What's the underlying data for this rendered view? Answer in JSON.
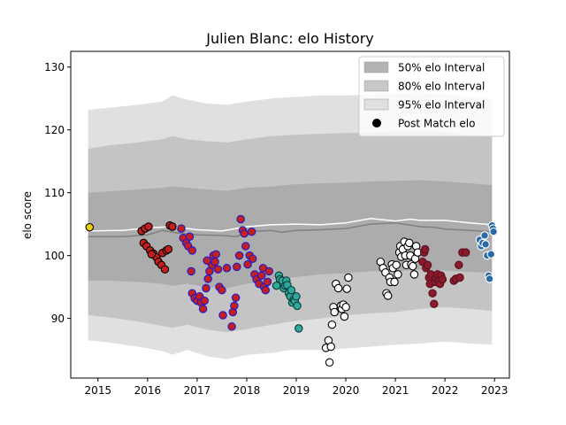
{
  "chart_data": {
    "type": "scatter",
    "title": "Julien Blanc: elo History",
    "ylabel": "elo score",
    "xlabel": "",
    "xlim": [
      2014.45,
      2023.3
    ],
    "ylim": [
      80.5,
      132.5
    ],
    "x_ticks": [
      2015,
      2016,
      2017,
      2018,
      2019,
      2020,
      2021,
      2022,
      2023
    ],
    "y_ticks": [
      90,
      100,
      110,
      120,
      130
    ],
    "grid": false,
    "legend_position": "top-right",
    "legend": [
      {
        "label": "50% elo Interval",
        "kind": "band",
        "color": "#b3b3b3"
      },
      {
        "label": "80% elo Interval",
        "kind": "band",
        "color": "#c8c8c8"
      },
      {
        "label": "95% elo Interval",
        "kind": "band",
        "color": "#e0e0e0"
      },
      {
        "label": "Post Match elo",
        "kind": "marker",
        "color": "#000000"
      }
    ],
    "bands": {
      "x": [
        2014.8,
        2015.2,
        2015.8,
        2016.3,
        2016.5,
        2016.8,
        2017.2,
        2017.6,
        2018.0,
        2018.5,
        2018.9,
        2019.5,
        2020.0,
        2020.5,
        2021.0,
        2021.5,
        2022.0,
        2022.5,
        2022.95
      ],
      "p95_low": [
        86.5,
        86.2,
        85.5,
        84.8,
        84.2,
        85.0,
        84.0,
        83.5,
        84.2,
        84.5,
        85.0,
        85.0,
        85.2,
        85.5,
        85.8,
        86.0,
        86.3,
        86.0,
        85.8
      ],
      "p95_high": [
        123.2,
        123.5,
        124.0,
        124.5,
        125.5,
        124.8,
        124.2,
        124.0,
        124.5,
        125.0,
        125.2,
        125.5,
        125.5,
        125.6,
        125.8,
        125.9,
        125.7,
        125.3,
        125.0
      ],
      "p80_low": [
        90.5,
        90.2,
        89.5,
        88.8,
        88.5,
        89.0,
        88.2,
        87.8,
        88.3,
        89.0,
        89.5,
        90.0,
        90.5,
        90.8,
        91.0,
        91.5,
        91.8,
        91.5,
        91.2
      ],
      "p80_high": [
        117.0,
        117.5,
        118.0,
        118.5,
        119.0,
        118.5,
        118.2,
        118.0,
        118.5,
        119.0,
        119.2,
        119.4,
        119.5,
        119.6,
        119.7,
        119.8,
        119.6,
        119.2,
        119.0
      ],
      "p50_low": [
        96.0,
        96.0,
        95.8,
        95.5,
        95.2,
        95.5,
        95.0,
        94.8,
        95.5,
        96.0,
        96.5,
        97.0,
        97.2,
        97.5,
        97.5,
        97.8,
        97.6,
        97.4,
        97.2
      ],
      "p50_high": [
        110.0,
        110.2,
        110.5,
        110.8,
        111.0,
        110.8,
        110.5,
        110.3,
        110.8,
        111.0,
        111.3,
        111.5,
        111.6,
        111.8,
        111.9,
        112.0,
        111.8,
        111.5,
        111.2
      ]
    },
    "median_line": {
      "color": "#808080",
      "x": [
        2014.8,
        2015.5,
        2016.0,
        2016.3,
        2016.6,
        2017.0,
        2017.5,
        2017.8,
        2018.0,
        2018.5,
        2018.7,
        2019.0,
        2019.5,
        2020.0,
        2020.5,
        2021.0,
        2021.5,
        2021.8,
        2022.0,
        2022.5,
        2022.95
      ],
      "y": [
        103.0,
        103.0,
        103.3,
        104.0,
        103.6,
        103.3,
        103.2,
        103.0,
        103.8,
        104.0,
        103.7,
        104.0,
        104.1,
        104.3,
        105.0,
        105.2,
        104.6,
        104.5,
        104.2,
        104.0,
        103.8
      ]
    },
    "mean_line": {
      "color": "#ffffff",
      "x": [
        2014.8,
        2015.5,
        2016.0,
        2016.5,
        2017.0,
        2017.5,
        2018.0,
        2018.5,
        2019.0,
        2019.5,
        2020.0,
        2020.5,
        2021.0,
        2021.3,
        2021.5,
        2022.0,
        2022.5,
        2022.95
      ],
      "y": [
        103.9,
        104.0,
        104.4,
        104.6,
        104.1,
        103.9,
        104.6,
        104.9,
        105.0,
        104.9,
        105.2,
        105.9,
        105.5,
        105.8,
        105.6,
        105.6,
        105.2,
        104.9
      ]
    },
    "series": [
      {
        "fill": "#e8d000",
        "edge": "#000000",
        "points": [
          [
            2014.83,
            104.5
          ]
        ]
      },
      {
        "fill": "#c41e1e",
        "edge": "#000000",
        "points": [
          [
            2015.88,
            103.9
          ],
          [
            2015.95,
            104.3
          ],
          [
            2016.02,
            104.6
          ],
          [
            2015.92,
            102.0
          ],
          [
            2015.98,
            101.5
          ],
          [
            2016.05,
            100.8
          ],
          [
            2016.12,
            100.3
          ],
          [
            2016.18,
            99.7
          ],
          [
            2016.22,
            99.0
          ],
          [
            2016.28,
            98.5
          ],
          [
            2016.35,
            97.8
          ],
          [
            2016.3,
            100.4
          ],
          [
            2016.38,
            100.8
          ],
          [
            2016.42,
            101.0
          ],
          [
            2016.45,
            104.8
          ],
          [
            2016.5,
            104.6
          ],
          [
            2016.08,
            100.2
          ]
        ]
      },
      {
        "fill": "#c41e1e",
        "edge": "#1a1ad0",
        "points": [
          [
            2016.68,
            104.3
          ],
          [
            2016.72,
            102.8
          ],
          [
            2016.78,
            102.0
          ],
          [
            2016.82,
            101.5
          ],
          [
            2016.85,
            103.0
          ],
          [
            2016.9,
            100.8
          ],
          [
            2016.88,
            97.5
          ],
          [
            2016.9,
            94.0
          ],
          [
            2016.95,
            93.2
          ],
          [
            2017.0,
            92.8
          ],
          [
            2017.05,
            93.5
          ],
          [
            2017.08,
            92.5
          ],
          [
            2017.12,
            91.5
          ],
          [
            2017.15,
            92.8
          ],
          [
            2017.18,
            94.8
          ],
          [
            2017.22,
            96.3
          ],
          [
            2017.25,
            97.5
          ],
          [
            2017.3,
            98.5
          ],
          [
            2017.33,
            100.0
          ],
          [
            2017.36,
            99.0
          ],
          [
            2017.38,
            100.2
          ],
          [
            2017.42,
            97.8
          ],
          [
            2017.45,
            95.0
          ],
          [
            2017.5,
            94.5
          ],
          [
            2017.52,
            90.5
          ],
          [
            2017.7,
            88.7
          ],
          [
            2017.72,
            91.0
          ],
          [
            2017.75,
            92.0
          ],
          [
            2017.78,
            93.3
          ],
          [
            2017.8,
            98.2
          ],
          [
            2017.85,
            100.0
          ],
          [
            2017.88,
            105.8
          ],
          [
            2017.92,
            104.0
          ],
          [
            2017.95,
            103.5
          ],
          [
            2017.98,
            101.5
          ],
          [
            2018.02,
            98.6
          ],
          [
            2018.06,
            100.0
          ],
          [
            2018.1,
            103.8
          ],
          [
            2018.12,
            99.5
          ],
          [
            2018.16,
            97.0
          ],
          [
            2018.2,
            96.2
          ],
          [
            2018.25,
            95.5
          ],
          [
            2018.3,
            96.8
          ],
          [
            2018.33,
            98.0
          ],
          [
            2018.35,
            95.0
          ],
          [
            2018.38,
            94.5
          ],
          [
            2018.42,
            95.8
          ],
          [
            2018.45,
            97.5
          ],
          [
            2017.6,
            98.0
          ],
          [
            2017.2,
            99.2
          ]
        ]
      },
      {
        "fill": "#2ea89a",
        "edge": "#0b3a3a",
        "points": [
          [
            2018.65,
            96.8
          ],
          [
            2018.67,
            96.2
          ],
          [
            2018.7,
            95.5
          ],
          [
            2018.72,
            96.0
          ],
          [
            2018.75,
            94.8
          ],
          [
            2018.78,
            95.2
          ],
          [
            2018.8,
            96.0
          ],
          [
            2018.82,
            95.3
          ],
          [
            2018.85,
            94.0
          ],
          [
            2018.88,
            93.5
          ],
          [
            2018.9,
            94.5
          ],
          [
            2018.92,
            92.5
          ],
          [
            2018.95,
            93.0
          ],
          [
            2018.97,
            92.8
          ],
          [
            2019.0,
            93.5
          ],
          [
            2019.02,
            92.0
          ],
          [
            2019.05,
            88.4
          ],
          [
            2018.6,
            95.2
          ]
        ]
      },
      {
        "fill": "#ffffff",
        "edge": "#000000",
        "points": [
          [
            2019.6,
            85.3
          ],
          [
            2019.65,
            86.5
          ],
          [
            2019.67,
            83.0
          ],
          [
            2019.7,
            85.5
          ],
          [
            2019.72,
            89.0
          ],
          [
            2019.75,
            91.8
          ],
          [
            2019.77,
            91.0
          ],
          [
            2019.8,
            95.5
          ],
          [
            2019.85,
            94.8
          ],
          [
            2019.9,
            92.0
          ],
          [
            2019.92,
            91.5
          ],
          [
            2019.95,
            92.2
          ],
          [
            2019.97,
            90.3
          ],
          [
            2020.0,
            91.8
          ],
          [
            2020.02,
            94.7
          ],
          [
            2020.05,
            96.5
          ],
          [
            2020.7,
            99.0
          ],
          [
            2020.75,
            98.0
          ],
          [
            2020.8,
            97.3
          ],
          [
            2020.82,
            94.0
          ],
          [
            2020.85,
            93.6
          ],
          [
            2020.88,
            96.5
          ],
          [
            2020.9,
            95.8
          ],
          [
            2020.93,
            98.6
          ],
          [
            2020.95,
            98.0
          ],
          [
            2020.98,
            95.8
          ],
          [
            2021.02,
            98.5
          ],
          [
            2021.05,
            97.0
          ],
          [
            2021.08,
            100.5
          ],
          [
            2021.1,
            101.5
          ],
          [
            2021.12,
            99.8
          ],
          [
            2021.15,
            101.0
          ],
          [
            2021.18,
            102.2
          ],
          [
            2021.2,
            100.0
          ],
          [
            2021.22,
            98.5
          ],
          [
            2021.25,
            101.5
          ],
          [
            2021.28,
            102.0
          ],
          [
            2021.3,
            100.0
          ],
          [
            2021.32,
            98.6
          ],
          [
            2021.35,
            98.3
          ],
          [
            2021.38,
            97.0
          ],
          [
            2021.4,
            99.5
          ],
          [
            2021.42,
            101.5
          ],
          [
            2021.45,
            100.5
          ]
        ]
      },
      {
        "fill": "#8b1a2a",
        "edge": "#5a1020",
        "points": [
          [
            2021.55,
            99.0
          ],
          [
            2021.58,
            100.5
          ],
          [
            2021.6,
            101.0
          ],
          [
            2021.62,
            98.0
          ],
          [
            2021.65,
            98.5
          ],
          [
            2021.68,
            96.5
          ],
          [
            2021.7,
            95.5
          ],
          [
            2021.72,
            97.0
          ],
          [
            2021.75,
            94.0
          ],
          [
            2021.78,
            92.3
          ],
          [
            2021.8,
            95.8
          ],
          [
            2021.82,
            96.5
          ],
          [
            2021.85,
            97.0
          ],
          [
            2021.88,
            96.0
          ],
          [
            2021.9,
            95.5
          ],
          [
            2021.92,
            96.8
          ],
          [
            2022.18,
            96.0
          ],
          [
            2022.22,
            96.3
          ],
          [
            2022.28,
            98.5
          ],
          [
            2022.3,
            96.5
          ],
          [
            2022.35,
            100.5
          ],
          [
            2022.42,
            100.5
          ],
          [
            2021.95,
            96.2
          ]
        ]
      },
      {
        "fill": "#2a6aa8",
        "edge": "#ffffff",
        "points": [
          [
            2022.7,
            102.5
          ],
          [
            2022.73,
            101.5
          ],
          [
            2022.76,
            102.0
          ],
          [
            2022.8,
            103.2
          ],
          [
            2022.82,
            101.8
          ],
          [
            2022.85,
            100.0
          ],
          [
            2022.88,
            96.8
          ],
          [
            2022.9,
            96.3
          ],
          [
            2022.93,
            100.2
          ],
          [
            2022.95,
            104.8
          ],
          [
            2022.97,
            104.3
          ],
          [
            2022.98,
            103.8
          ]
        ]
      }
    ]
  }
}
